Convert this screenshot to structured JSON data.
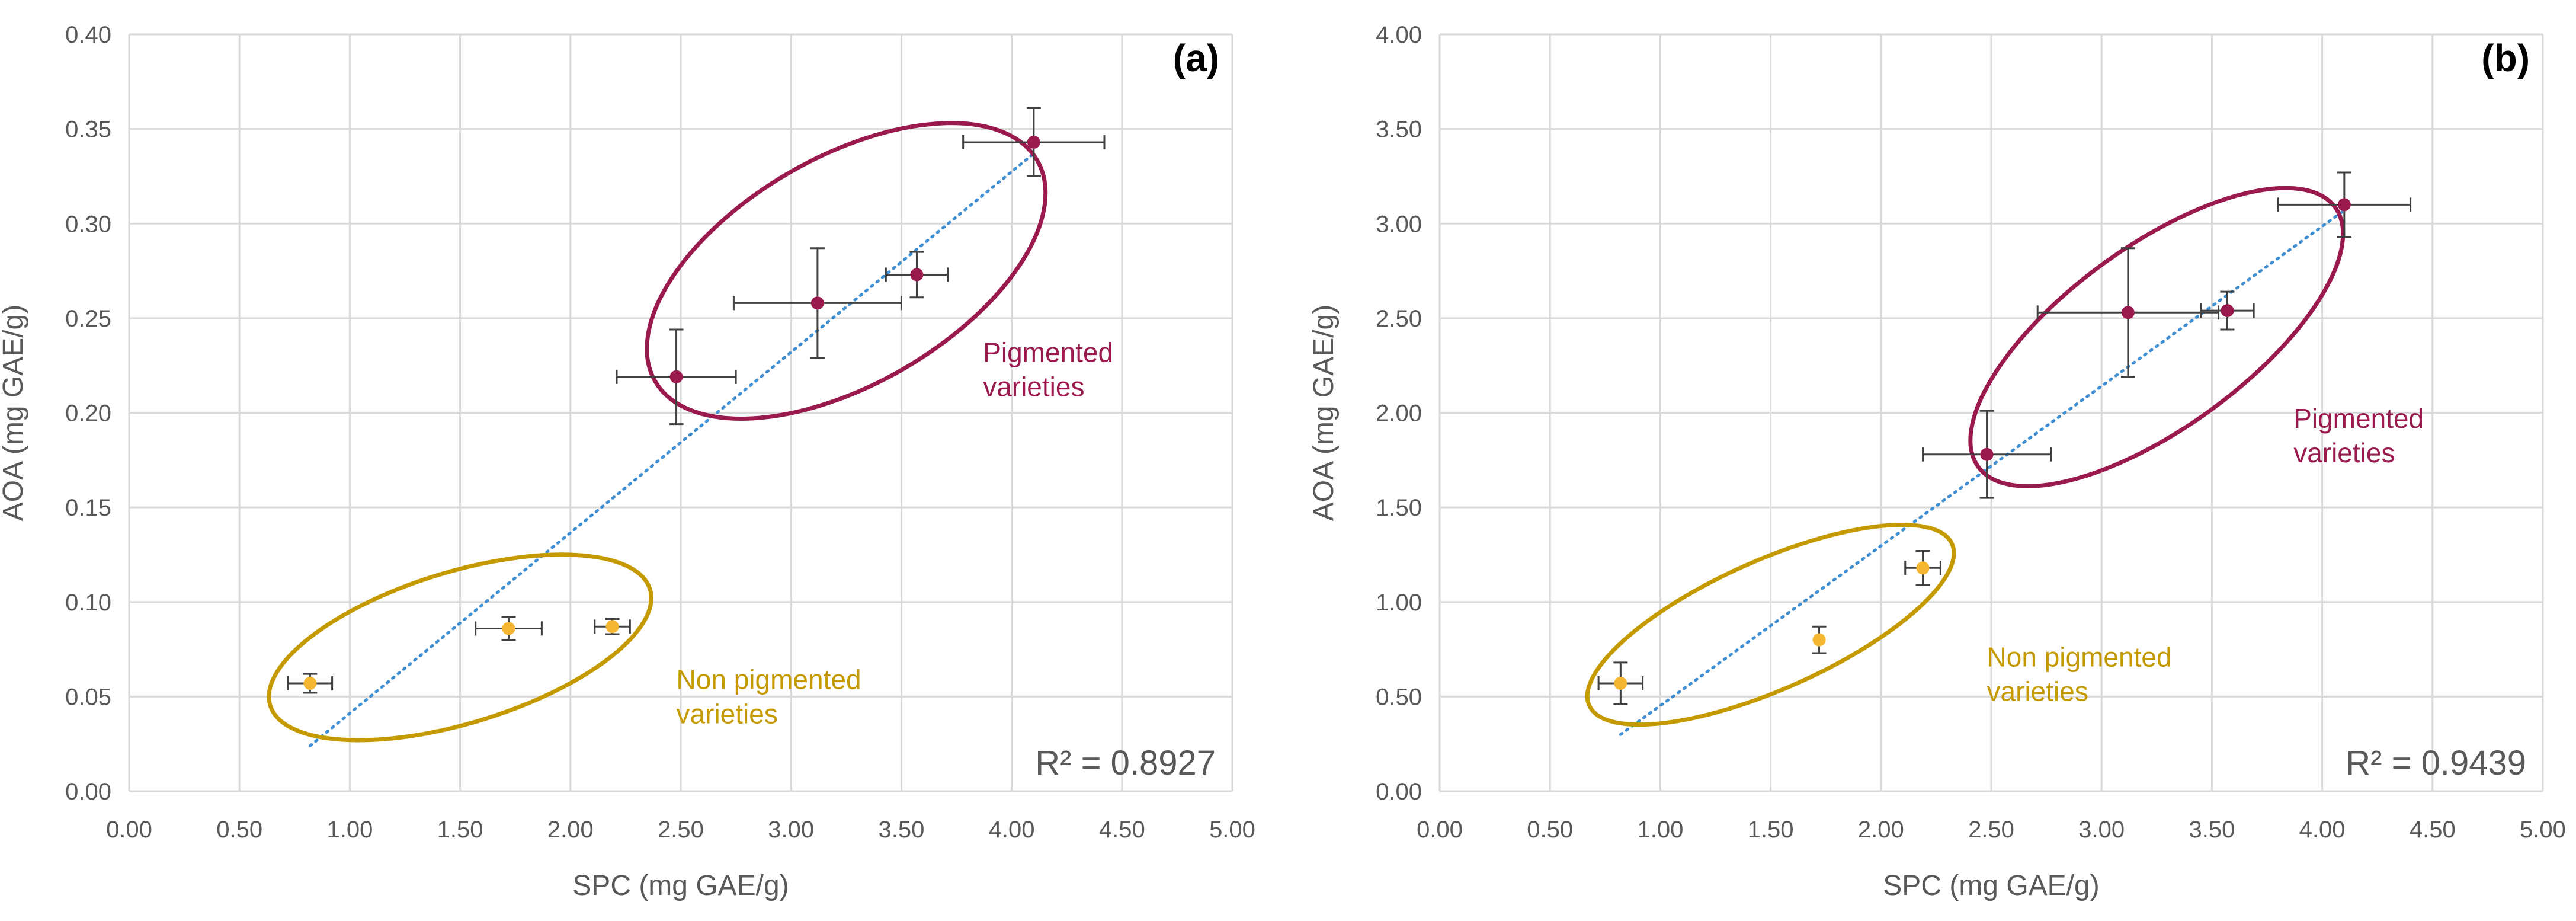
{
  "colors": {
    "pigmented": "#9b1a4e",
    "nonpigmented": "#c49a00",
    "nonpigmented_marker": "#f5b731",
    "trend": "#3f8fd2",
    "grid": "#d9d9d9",
    "axis_text": "#595959",
    "error_bar": "#404040"
  },
  "chart_data": [
    {
      "type": "scatter",
      "panel_label": "(a)",
      "xlabel": "SPC (mg GAE/g)",
      "ylabel": "AOA (mg GAE/g)",
      "xlim": [
        0,
        5
      ],
      "ylim": [
        0,
        0.4
      ],
      "xticks": [
        "0.00",
        "0.50",
        "1.00",
        "1.50",
        "2.00",
        "2.50",
        "3.00",
        "3.50",
        "4.00",
        "4.50",
        "5.00"
      ],
      "yticks": [
        "0.00",
        "0.05",
        "0.10",
        "0.15",
        "0.20",
        "0.25",
        "0.30",
        "0.35",
        "0.40"
      ],
      "grid": true,
      "series": [
        {
          "name": "Non pigmented varieties",
          "points": [
            {
              "x": 0.82,
              "y": 0.057,
              "xerr": 0.1,
              "yerr": 0.005
            },
            {
              "x": 1.72,
              "y": 0.086,
              "xerr": 0.15,
              "yerr": 0.006
            },
            {
              "x": 2.19,
              "y": 0.087,
              "xerr": 0.08,
              "yerr": 0.004
            }
          ]
        },
        {
          "name": "Pigmented varieties",
          "points": [
            {
              "x": 2.48,
              "y": 0.219,
              "xerr": 0.27,
              "yerr": 0.025
            },
            {
              "x": 3.12,
              "y": 0.258,
              "xerr": 0.38,
              "yerr": 0.029
            },
            {
              "x": 3.57,
              "y": 0.273,
              "xerr": 0.14,
              "yerr": 0.012
            },
            {
              "x": 4.1,
              "y": 0.343,
              "xerr": 0.32,
              "yerr": 0.018
            }
          ]
        }
      ],
      "trendline": {
        "x_start": 0.82,
        "y_start": 0.024,
        "x_end": 4.1,
        "y_end": 0.337
      },
      "r_squared": "R² = 0.8927",
      "annotations": {
        "pigmented_line1": "Pigmented",
        "pigmented_line2": "varieties",
        "nonpigmented_line1": "Non pigmented",
        "nonpigmented_line2": "varieties"
      },
      "groups": {
        "pigmented": {
          "cx": 3.25,
          "cy": 0.275,
          "rx": 1.0,
          "ry": 0.06,
          "angle_deg": -30
        },
        "nonpigmented": {
          "cx": 1.5,
          "cy": 0.076,
          "rx": 0.9,
          "ry": 0.04,
          "angle_deg": -17
        }
      }
    },
    {
      "type": "scatter",
      "panel_label": "(b)",
      "xlabel": "SPC (mg GAE/g)",
      "ylabel": "AOA (mg GAE/g)",
      "xlim": [
        0,
        5
      ],
      "ylim": [
        0,
        4
      ],
      "xticks": [
        "0.00",
        "0.50",
        "1.00",
        "1.50",
        "2.00",
        "2.50",
        "3.00",
        "3.50",
        "4.00",
        "4.50",
        "5.00"
      ],
      "yticks": [
        "0.00",
        "0.50",
        "1.00",
        "1.50",
        "2.00",
        "2.50",
        "3.00",
        "3.50",
        "4.00"
      ],
      "grid": true,
      "series": [
        {
          "name": "Non pigmented varieties",
          "points": [
            {
              "x": 0.82,
              "y": 0.57,
              "xerr": 0.1,
              "yerr": 0.11
            },
            {
              "x": 1.72,
              "y": 0.8,
              "xerr": 0.0,
              "yerr": 0.07
            },
            {
              "x": 2.19,
              "y": 1.18,
              "xerr": 0.08,
              "yerr": 0.09
            }
          ]
        },
        {
          "name": "Pigmented varieties",
          "points": [
            {
              "x": 2.48,
              "y": 1.78,
              "xerr": 0.29,
              "yerr": 0.23
            },
            {
              "x": 3.12,
              "y": 2.53,
              "xerr": 0.41,
              "yerr": 0.34
            },
            {
              "x": 3.57,
              "y": 2.54,
              "xerr": 0.12,
              "yerr": 0.1
            },
            {
              "x": 4.1,
              "y": 3.1,
              "xerr": 0.3,
              "yerr": 0.17
            }
          ]
        }
      ],
      "trendline": {
        "x_start": 0.82,
        "y_start": 0.3,
        "x_end": 4.1,
        "y_end": 3.07
      },
      "r_squared": "R² = 0.9439",
      "annotations": {
        "pigmented_line1": "Pigmented",
        "pigmented_line2": "varieties",
        "nonpigmented_line1": "Non pigmented",
        "nonpigmented_line2": "varieties"
      },
      "groups": {
        "pigmented": {
          "cx": 3.25,
          "cy": 2.4,
          "rx": 1.0,
          "ry": 0.48,
          "angle_deg": -36
        },
        "nonpigmented": {
          "cx": 1.5,
          "cy": 0.88,
          "rx": 0.9,
          "ry": 0.34,
          "angle_deg": -24
        }
      }
    }
  ]
}
